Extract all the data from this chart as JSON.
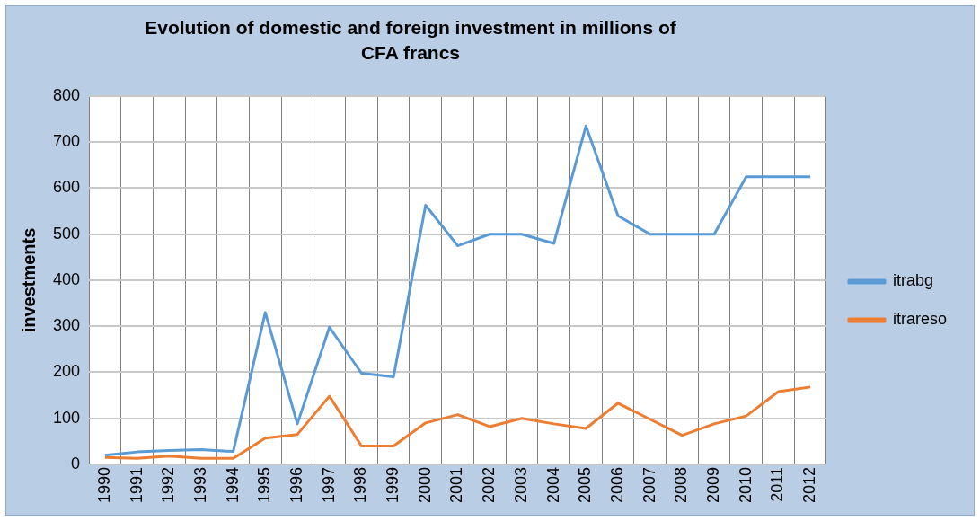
{
  "chart_data": {
    "type": "line",
    "title": "Evolution of domestic and foreign investment in millions of CFA francs",
    "ylabel": "investments",
    "categories": [
      "1990",
      "1991",
      "1992",
      "1993",
      "1994",
      "1995",
      "1996",
      "1997",
      "1998",
      "1999",
      "2000",
      "2001",
      "2002",
      "2003",
      "2004",
      "2005",
      "2006",
      "2007",
      "2008",
      "2009",
      "2010",
      "2011",
      "2012"
    ],
    "series": [
      {
        "name": "itrabg",
        "color": "#5b9bd5",
        "values": [
          20,
          27,
          30,
          32,
          28,
          330,
          88,
          298,
          198,
          190,
          563,
          475,
          500,
          500,
          480,
          735,
          540,
          500,
          500,
          500,
          625,
          625,
          625
        ]
      },
      {
        "name": "itrareso",
        "color": "#ed7d31",
        "values": [
          15,
          13,
          18,
          13,
          13,
          57,
          65,
          148,
          40,
          40,
          90,
          108,
          82,
          100,
          88,
          78,
          133,
          98,
          63,
          88,
          105,
          158,
          168
        ]
      }
    ],
    "ylim": [
      0,
      800
    ],
    "yticks": [
      0,
      100,
      200,
      300,
      400,
      500,
      600,
      700,
      800
    ],
    "grid": true,
    "legend": "right",
    "marker": "none",
    "line_style": "solid"
  }
}
